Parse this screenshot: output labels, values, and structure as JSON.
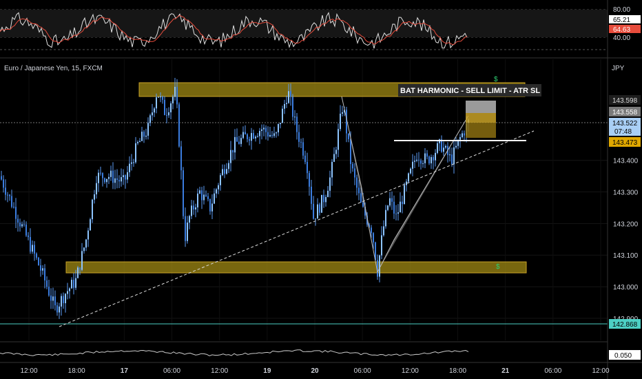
{
  "symbol_title": "Euro / Japanese Yen, 15, FXCM",
  "currency_label": "JPY",
  "annotation_text": "BAT HARMONIC - SELL LIMIT - ATR SL",
  "dollar_glyph": "$",
  "colors": {
    "candle": "#5b9cf6",
    "zone": "#a08a14",
    "zone_border": "#c9a227",
    "pattern": "#8a8a8a",
    "rsi_line": "#e0e0e0",
    "rsi_ma": "#e74c3c",
    "support_line": "#4dd0c4"
  },
  "price_badges": {
    "p1": "143.598",
    "p2": "143.558",
    "p3": "143.522",
    "countdown": "07:48",
    "p4": "143.473",
    "support": "142.868",
    "volume": "0.050"
  },
  "rsi_labels": {
    "upper": "80.00",
    "value": "65.21",
    "ma": "64.63",
    "lower": "40.00"
  },
  "chart_data": {
    "type": "candlestick",
    "title": "Euro / Japanese Yen, 15, FXCM",
    "ylabel": "JPY",
    "y_ticks": [
      143.4,
      143.3,
      143.2,
      143.1,
      143.0,
      142.9
    ],
    "y_tick_labels": [
      "143.400",
      "143.300",
      "143.200",
      "143.100",
      "143.000",
      "142.900"
    ],
    "x_tick_labels": [
      "12:00",
      "18:00",
      "17",
      "06:00",
      "12:00",
      "19",
      "20",
      "06:00",
      "12:00",
      "18:00",
      "21",
      "06:00",
      "12:00"
    ],
    "ylim": [
      142.83,
      143.72
    ],
    "zones": [
      {
        "name": "resistance",
        "low": 143.605,
        "high": 143.655
      },
      {
        "name": "support",
        "low": 143.025,
        "high": 143.068
      }
    ],
    "support_level": 142.868,
    "rsi": {
      "levels": [
        80,
        40
      ],
      "value": 65.21,
      "ma": 64.63
    }
  }
}
